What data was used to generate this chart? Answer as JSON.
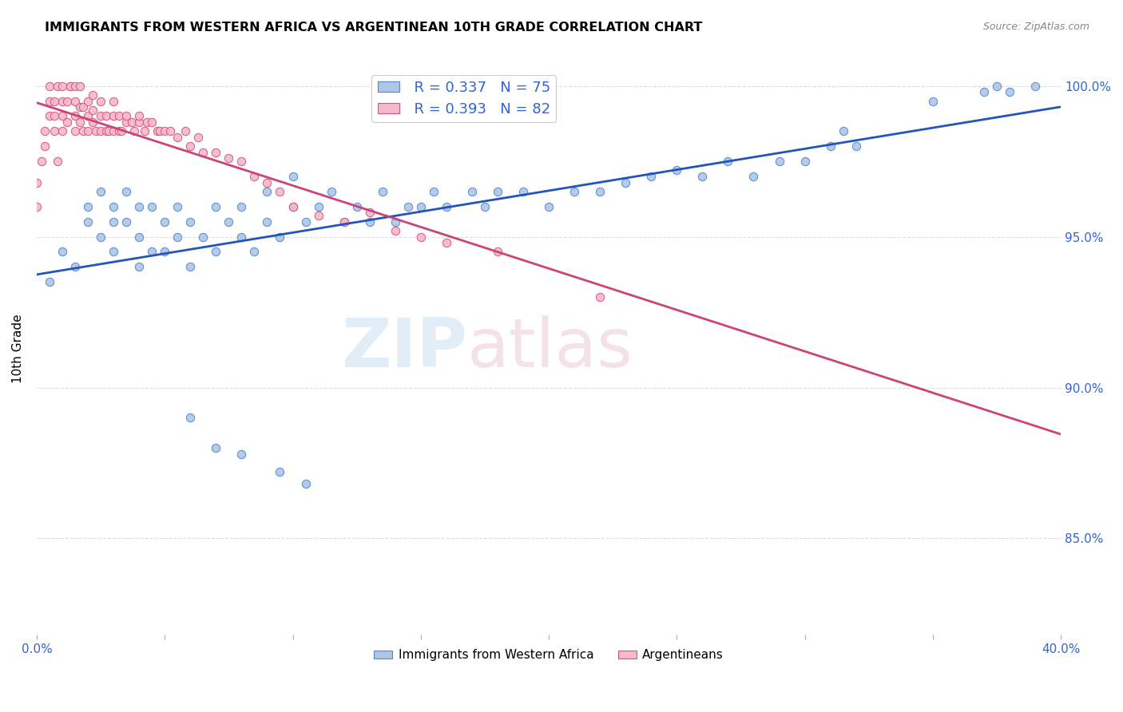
{
  "title": "IMMIGRANTS FROM WESTERN AFRICA VS ARGENTINEAN 10TH GRADE CORRELATION CHART",
  "source": "Source: ZipAtlas.com",
  "ylabel": "10th Grade",
  "xlim": [
    0.0,
    0.4
  ],
  "ylim": [
    0.818,
    1.008
  ],
  "ytick_values": [
    0.85,
    0.9,
    0.95,
    1.0
  ],
  "ytick_labels": [
    "85.0%",
    "90.0%",
    "95.0%",
    "100.0%"
  ],
  "legend_r_blue": "R = 0.337",
  "legend_n_blue": "N = 75",
  "legend_r_pink": "R = 0.393",
  "legend_n_pink": "N = 82",
  "legend_label_blue": "Immigrants from Western Africa",
  "legend_label_pink": "Argentineans",
  "blue_color": "#aec6e8",
  "blue_edge_color": "#5588cc",
  "pink_color": "#f7b8c8",
  "pink_edge_color": "#d45580",
  "blue_line_color": "#2255bb",
  "pink_line_color": "#cc4477",
  "watermark_zip": "ZIP",
  "watermark_atlas": "atlas",
  "blue_scatter_x": [
    0.005,
    0.01,
    0.015,
    0.02,
    0.02,
    0.025,
    0.025,
    0.03,
    0.03,
    0.03,
    0.035,
    0.035,
    0.04,
    0.04,
    0.04,
    0.045,
    0.045,
    0.05,
    0.05,
    0.055,
    0.055,
    0.06,
    0.06,
    0.065,
    0.07,
    0.07,
    0.075,
    0.08,
    0.08,
    0.085,
    0.09,
    0.09,
    0.095,
    0.1,
    0.1,
    0.105,
    0.11,
    0.115,
    0.12,
    0.125,
    0.13,
    0.135,
    0.14,
    0.145,
    0.15,
    0.155,
    0.16,
    0.17,
    0.175,
    0.18,
    0.19,
    0.2,
    0.21,
    0.22,
    0.23,
    0.24,
    0.25,
    0.26,
    0.27,
    0.28,
    0.29,
    0.3,
    0.31,
    0.315,
    0.32,
    0.35,
    0.37,
    0.375,
    0.38,
    0.39,
    0.06,
    0.07,
    0.08,
    0.095,
    0.105
  ],
  "blue_scatter_y": [
    0.935,
    0.945,
    0.94,
    0.955,
    0.96,
    0.95,
    0.965,
    0.945,
    0.955,
    0.96,
    0.955,
    0.965,
    0.94,
    0.95,
    0.96,
    0.945,
    0.96,
    0.945,
    0.955,
    0.95,
    0.96,
    0.94,
    0.955,
    0.95,
    0.945,
    0.96,
    0.955,
    0.95,
    0.96,
    0.945,
    0.955,
    0.965,
    0.95,
    0.96,
    0.97,
    0.955,
    0.96,
    0.965,
    0.955,
    0.96,
    0.955,
    0.965,
    0.955,
    0.96,
    0.96,
    0.965,
    0.96,
    0.965,
    0.96,
    0.965,
    0.965,
    0.96,
    0.965,
    0.965,
    0.968,
    0.97,
    0.972,
    0.97,
    0.975,
    0.97,
    0.975,
    0.975,
    0.98,
    0.985,
    0.98,
    0.995,
    0.998,
    1.0,
    0.998,
    1.0,
    0.89,
    0.88,
    0.878,
    0.872,
    0.868
  ],
  "pink_scatter_x": [
    0.0,
    0.0,
    0.002,
    0.003,
    0.003,
    0.005,
    0.005,
    0.005,
    0.007,
    0.007,
    0.007,
    0.008,
    0.008,
    0.01,
    0.01,
    0.01,
    0.01,
    0.012,
    0.012,
    0.013,
    0.013,
    0.015,
    0.015,
    0.015,
    0.015,
    0.017,
    0.017,
    0.017,
    0.018,
    0.018,
    0.02,
    0.02,
    0.02,
    0.022,
    0.022,
    0.022,
    0.023,
    0.025,
    0.025,
    0.025,
    0.027,
    0.027,
    0.028,
    0.03,
    0.03,
    0.03,
    0.032,
    0.032,
    0.033,
    0.035,
    0.035,
    0.037,
    0.038,
    0.04,
    0.04,
    0.042,
    0.043,
    0.045,
    0.047,
    0.048,
    0.05,
    0.052,
    0.055,
    0.058,
    0.06,
    0.063,
    0.065,
    0.07,
    0.075,
    0.08,
    0.085,
    0.09,
    0.095,
    0.1,
    0.11,
    0.12,
    0.13,
    0.14,
    0.15,
    0.16,
    0.18,
    0.22
  ],
  "pink_scatter_y": [
    0.96,
    0.968,
    0.975,
    0.98,
    0.985,
    0.99,
    0.995,
    1.0,
    0.985,
    0.99,
    0.995,
    1.0,
    0.975,
    0.985,
    0.99,
    0.995,
    1.0,
    0.988,
    0.995,
    1.0,
    1.0,
    0.985,
    0.99,
    0.995,
    1.0,
    0.988,
    0.993,
    1.0,
    0.985,
    0.993,
    0.985,
    0.99,
    0.995,
    0.988,
    0.992,
    0.997,
    0.985,
    0.985,
    0.99,
    0.995,
    0.985,
    0.99,
    0.985,
    0.985,
    0.99,
    0.995,
    0.985,
    0.99,
    0.985,
    0.988,
    0.99,
    0.988,
    0.985,
    0.988,
    0.99,
    0.985,
    0.988,
    0.988,
    0.985,
    0.985,
    0.985,
    0.985,
    0.983,
    0.985,
    0.98,
    0.983,
    0.978,
    0.978,
    0.976,
    0.975,
    0.97,
    0.968,
    0.965,
    0.96,
    0.957,
    0.955,
    0.958,
    0.952,
    0.95,
    0.948,
    0.945,
    0.93
  ]
}
